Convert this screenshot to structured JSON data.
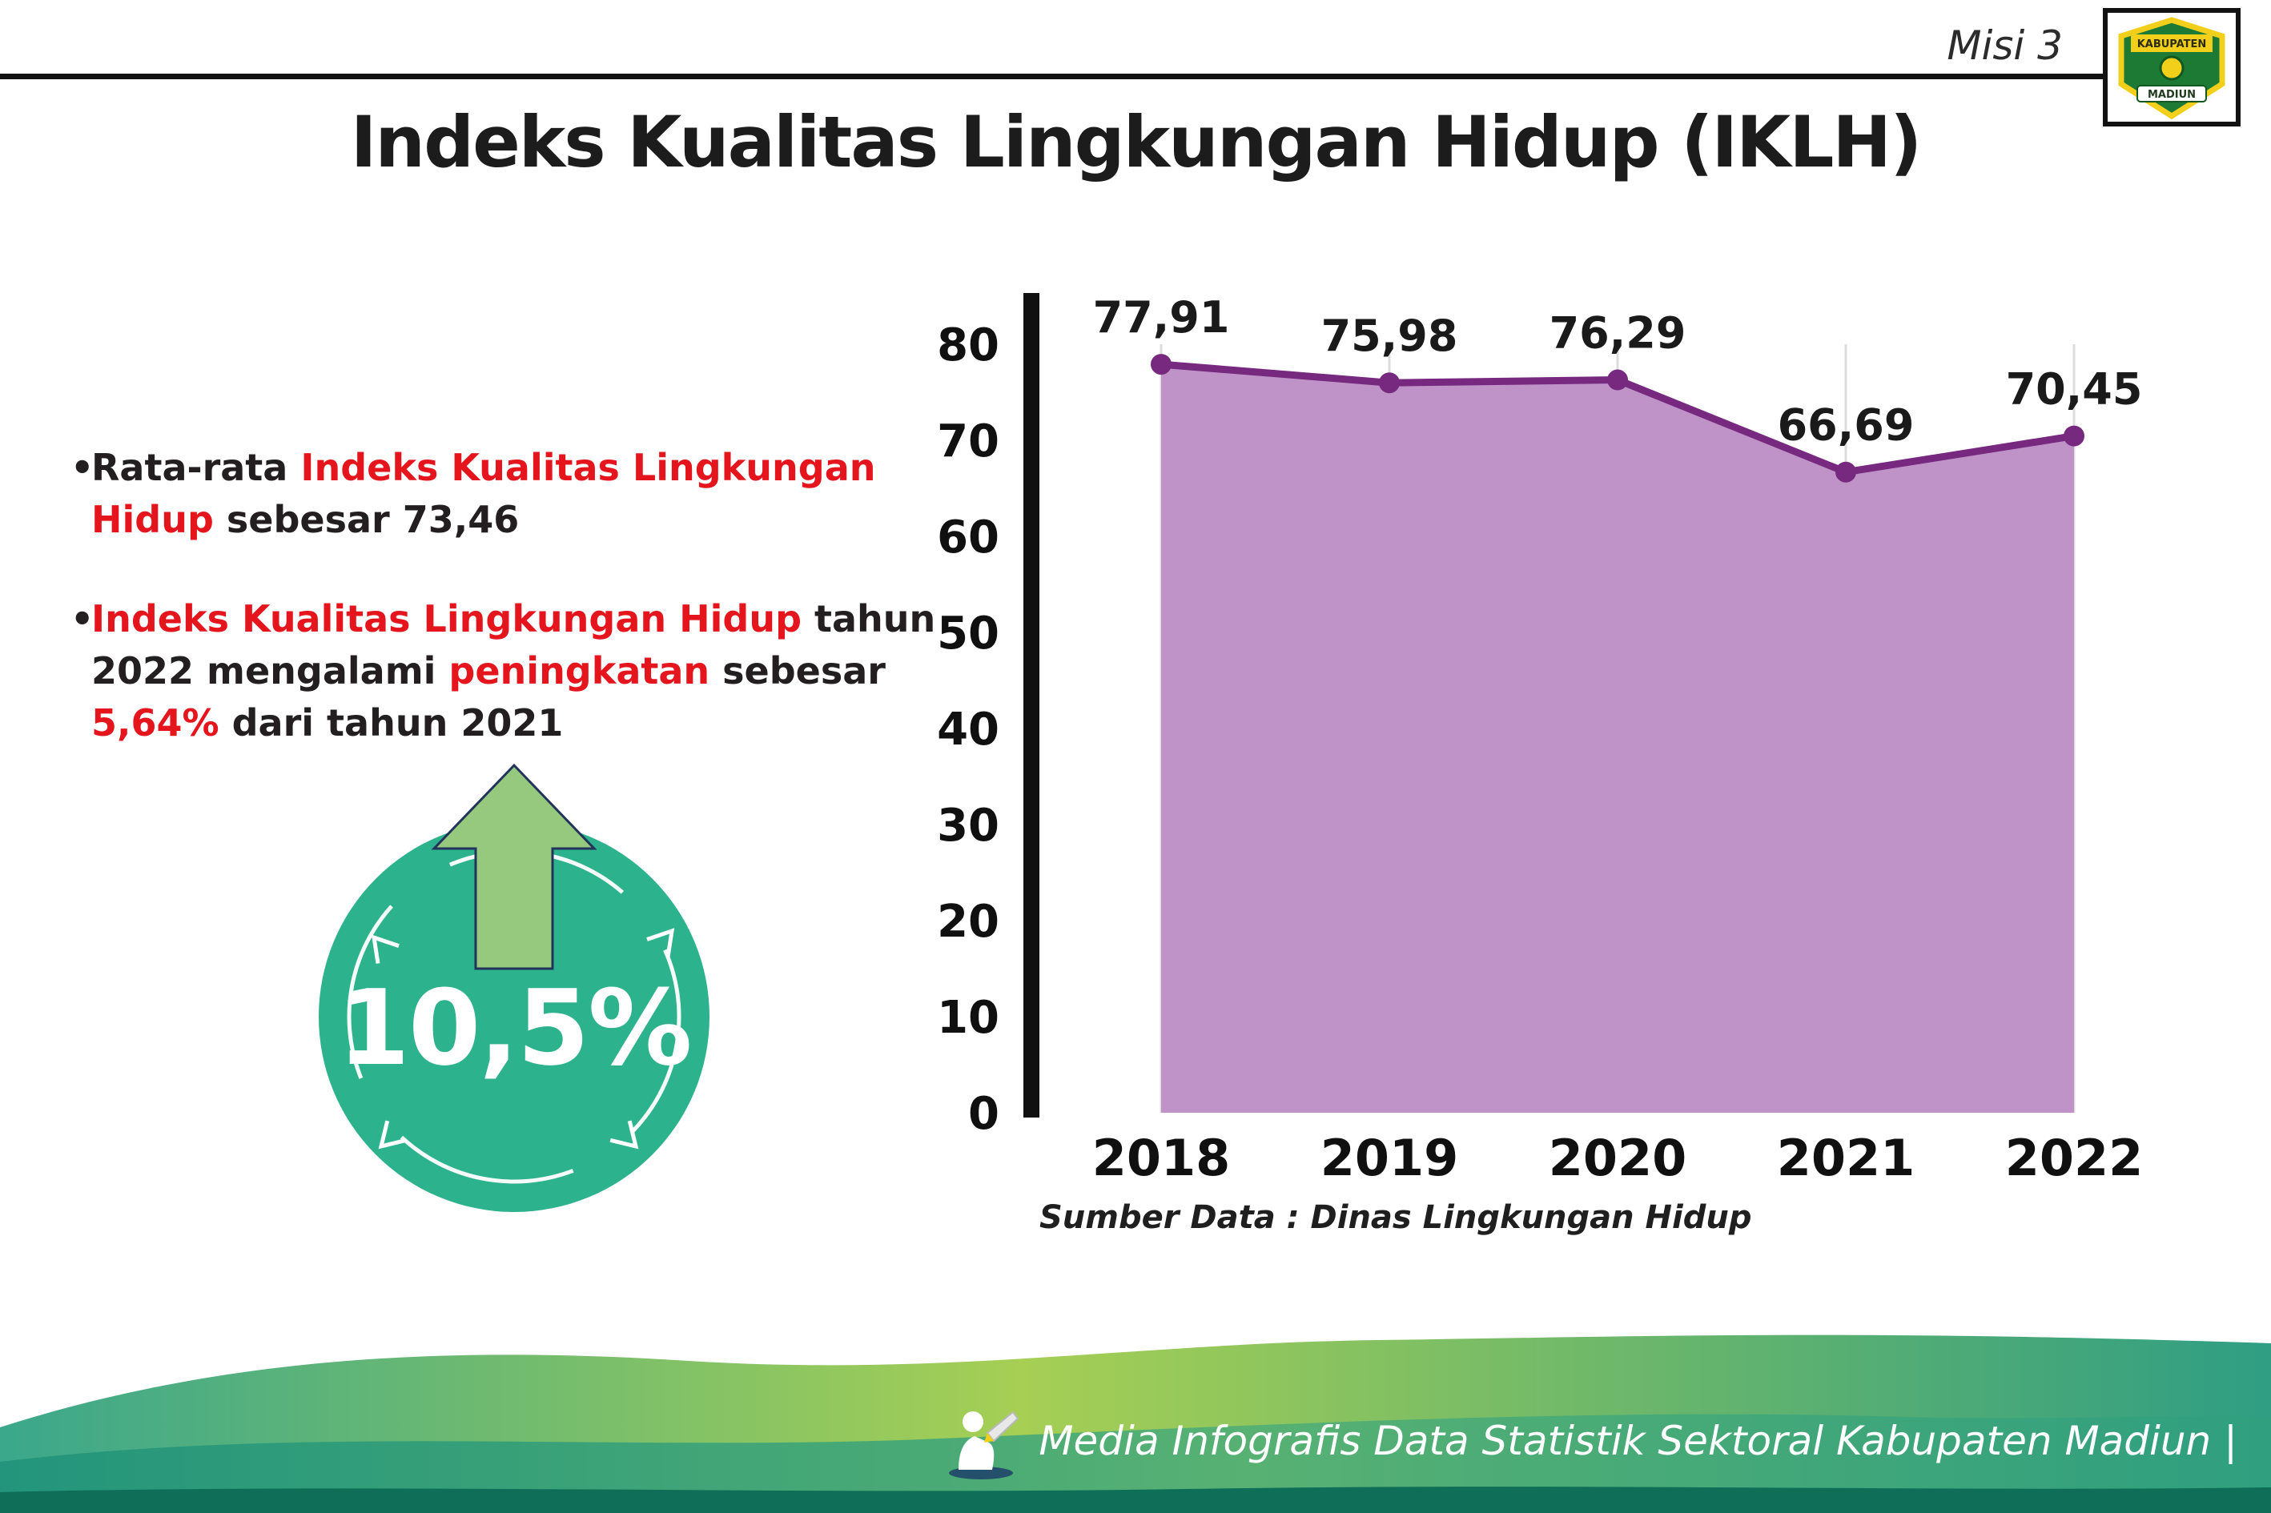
{
  "header": {
    "misi_label": "Misi 3",
    "title": "Indeks Kualitas Lingkungan Hidup (IKLH)",
    "logo": {
      "top_text": "KABUPATEN",
      "bottom_text": "MADIUN"
    }
  },
  "bullets": {
    "b1": {
      "t1": "Rata-rata ",
      "t2": "Indeks Kualitas Lingkungan Hidup",
      "t3": " sebesar 73,46"
    },
    "b2": {
      "t1": "Indeks Kualitas Lingkungan Hidup",
      "t2": " tahun 2022 mengalami ",
      "t3": "peningkatan",
      "t4": " sebesar ",
      "t5": "5,64%",
      "t6": " dari tahun 2021"
    }
  },
  "badge": {
    "value": "10,5%"
  },
  "chart_data": {
    "type": "area",
    "title": "Indeks Kualitas Lingkungan Hidup (IKLH)",
    "categories": [
      "2018",
      "2019",
      "2020",
      "2021",
      "2022"
    ],
    "values": [
      77.91,
      75.98,
      76.29,
      66.69,
      70.45
    ],
    "point_labels": [
      "77,91",
      "75,98",
      "76,29",
      "66,69",
      "70,45"
    ],
    "ylim": [
      0,
      80
    ],
    "yticks": [
      0,
      10,
      20,
      30,
      40,
      50,
      60,
      70,
      80
    ],
    "grid": "vertical-light",
    "legend": "none",
    "line_color": "#76297f",
    "fill_color": "#bf93c8",
    "point_color": "#76297f",
    "source": "Sumber Data : Dinas Lingkungan Hidup"
  },
  "footer": {
    "credit": "Media Infografis Data Statistik Sektoral Kabupaten Madiun |"
  },
  "colors": {
    "accent_red": "#e4151d",
    "badge_teal": "#2db28e",
    "arrow_green": "#96c97e",
    "footer_teal": "#2f9f85",
    "footer_green": "#a6cf54",
    "footer_dark": "#0e6e57",
    "text_dark": "#231f20"
  }
}
